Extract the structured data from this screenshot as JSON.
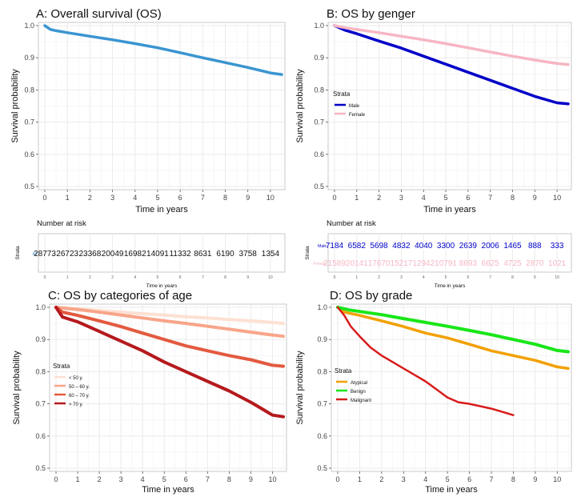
{
  "colors": {
    "os_all": "#3a95d1",
    "male": "#0000c8",
    "female": "#f6b6c3",
    "age_lt50": "#fde1d3",
    "age_50_60": "#f8a58a",
    "age_60_70": "#e35a3f",
    "age_gt70": "#b5191d",
    "atypical": "#f2a004",
    "benign": "#19e619",
    "malignant": "#d81b1b",
    "grid": "#ebebeb",
    "axis": "#333333"
  },
  "chart_data": [
    {
      "id": "A",
      "type": "line",
      "title": "A: Overall survival (OS)",
      "xlabel": "Time in years",
      "ylabel": "Survival probability",
      "xlim": [
        0,
        10.5
      ],
      "ylim": [
        0.5,
        1.0
      ],
      "xticks": [
        "0",
        "1",
        "2",
        "3",
        "4",
        "5",
        "6",
        "7",
        "8",
        "9",
        "10"
      ],
      "yticks": [
        "0.5",
        "0.6",
        "0.7",
        "0.8",
        "0.9",
        "1.0"
      ],
      "legend": null,
      "series": [
        {
          "name": "All",
          "color": "#3a95d1",
          "width": 3.5,
          "x": [
            0,
            0.25,
            0.5,
            1,
            2,
            3,
            4,
            5,
            6,
            7,
            8,
            9,
            10,
            10.5
          ],
          "y": [
            1.0,
            0.988,
            0.984,
            0.978,
            0.967,
            0.956,
            0.944,
            0.931,
            0.916,
            0.9,
            0.885,
            0.87,
            0.853,
            0.848
          ]
        }
      ],
      "risk_table": {
        "title": "Number at risk",
        "ylabel": "Strata",
        "xlabel": "Time in years",
        "rows": [
          {
            "name": "All",
            "color": "#3a95d1",
            "values": [
              "28773",
              "26723",
              "23368",
              "20049",
              "16982",
              "14091",
              "11332",
              "8631",
              "6190",
              "3758",
              "1354"
            ]
          }
        ]
      }
    },
    {
      "id": "B",
      "type": "line",
      "title": "B: OS by genger",
      "xlabel": "Time in years",
      "ylabel": "Survival probability",
      "xlim": [
        0,
        10.5
      ],
      "ylim": [
        0.5,
        1.0
      ],
      "xticks": [
        "0",
        "1",
        "2",
        "3",
        "4",
        "5",
        "6",
        "7",
        "8",
        "9",
        "10"
      ],
      "yticks": [
        "0.5",
        "0.6",
        "0.7",
        "0.8",
        "0.9",
        "1.0"
      ],
      "legend": {
        "title": "Strata",
        "position": "center-left"
      },
      "series": [
        {
          "name": "Male",
          "color": "#0000c8",
          "width": 3.5,
          "x": [
            0,
            0.5,
            1,
            2,
            3,
            4,
            5,
            6,
            7,
            8,
            9,
            10,
            10.5
          ],
          "y": [
            1.0,
            0.985,
            0.975,
            0.952,
            0.93,
            0.905,
            0.88,
            0.855,
            0.83,
            0.805,
            0.78,
            0.76,
            0.757
          ]
        },
        {
          "name": "Female",
          "color": "#f6b6c3",
          "width": 3.5,
          "x": [
            0,
            0.5,
            1,
            2,
            3,
            4,
            5,
            6,
            7,
            8,
            9,
            10,
            10.5
          ],
          "y": [
            1.0,
            0.993,
            0.988,
            0.978,
            0.967,
            0.956,
            0.944,
            0.931,
            0.918,
            0.905,
            0.893,
            0.882,
            0.879
          ]
        }
      ],
      "risk_table": {
        "title": "Number at risk",
        "ylabel": "Strata",
        "xlabel": "Time in years",
        "rows": [
          {
            "name": "Male",
            "color": "#0000c8",
            "values": [
              "7184",
              "6582",
              "5698",
              "4832",
              "4040",
              "3300",
              "2639",
              "2006",
              "1465",
              "888",
              "333"
            ]
          },
          {
            "name": "Female",
            "color": "#f6b6c3",
            "values": [
              "21589",
              "20141",
              "17670",
              "15217",
              "12942",
              "10791",
              "8693",
              "6625",
              "4725",
              "2870",
              "1021"
            ]
          }
        ]
      }
    },
    {
      "id": "C",
      "type": "line",
      "title": "C: OS by categories of age",
      "xlabel": "Time in years",
      "ylabel": "Survival probability",
      "xlim": [
        0,
        10.5
      ],
      "ylim": [
        0.5,
        1.0
      ],
      "xticks": [
        "0",
        "1",
        "2",
        "3",
        "4",
        "5",
        "6",
        "7",
        "8",
        "9",
        "10"
      ],
      "yticks": [
        "0.5",
        "0.6",
        "0.7",
        "0.8",
        "0.9",
        "1.0"
      ],
      "legend": {
        "title": "Strata",
        "position": "center-left"
      },
      "series": [
        {
          "name": "< 50 y.",
          "color": "#fde1d3",
          "width": 4,
          "x": [
            0,
            1,
            2,
            3,
            4,
            5,
            6,
            7,
            8,
            9,
            10,
            10.5
          ],
          "y": [
            1.0,
            0.995,
            0.99,
            0.985,
            0.98,
            0.976,
            0.971,
            0.967,
            0.962,
            0.958,
            0.953,
            0.95
          ]
        },
        {
          "name": "50 – 60 y.",
          "color": "#f8a58a",
          "width": 4,
          "x": [
            0,
            1,
            2,
            3,
            4,
            5,
            6,
            7,
            8,
            9,
            10,
            10.5
          ],
          "y": [
            1.0,
            0.993,
            0.985,
            0.976,
            0.967,
            0.958,
            0.95,
            0.941,
            0.932,
            0.923,
            0.914,
            0.91
          ]
        },
        {
          "name": "60 – 70 y.",
          "color": "#e35a3f",
          "width": 4,
          "x": [
            0,
            0.3,
            1,
            2,
            3,
            4,
            5,
            6,
            7,
            8,
            9,
            10,
            10.5
          ],
          "y": [
            1.0,
            0.985,
            0.975,
            0.958,
            0.94,
            0.92,
            0.9,
            0.88,
            0.865,
            0.85,
            0.837,
            0.82,
            0.817
          ]
        },
        {
          "name": "> 70 y.",
          "color": "#b5191d",
          "width": 4,
          "x": [
            0,
            0.3,
            1,
            2,
            3,
            4,
            5,
            6,
            7,
            8,
            9,
            9.5,
            10,
            10.5
          ],
          "y": [
            1.0,
            0.97,
            0.955,
            0.925,
            0.895,
            0.865,
            0.83,
            0.8,
            0.77,
            0.74,
            0.705,
            0.685,
            0.665,
            0.66
          ]
        }
      ]
    },
    {
      "id": "D",
      "type": "line",
      "title": "D: OS by grade",
      "xlabel": "Time in years",
      "ylabel": "Survival probability",
      "xlim": [
        0,
        10.5
      ],
      "ylim": [
        0.5,
        1.0
      ],
      "xticks": [
        "0",
        "1",
        "2",
        "3",
        "4",
        "5",
        "6",
        "7",
        "8",
        "9",
        "10"
      ],
      "yticks": [
        "0.5",
        "0.6",
        "0.7",
        "0.8",
        "0.9",
        "1.0"
      ],
      "legend": {
        "title": "Strata",
        "position": "center-left"
      },
      "series": [
        {
          "name": "Atypical",
          "color": "#f2a004",
          "width": 3.5,
          "x": [
            0,
            0.3,
            1,
            2,
            3,
            4,
            5,
            6,
            7,
            8,
            9,
            10,
            10.5
          ],
          "y": [
            1.0,
            0.985,
            0.975,
            0.958,
            0.94,
            0.92,
            0.905,
            0.885,
            0.865,
            0.85,
            0.835,
            0.815,
            0.81
          ]
        },
        {
          "name": "Benign",
          "color": "#19e619",
          "width": 4,
          "x": [
            0,
            0.5,
            1,
            2,
            3,
            4,
            5,
            6,
            7,
            8,
            9,
            10,
            10.5
          ],
          "y": [
            1.0,
            0.992,
            0.987,
            0.977,
            0.965,
            0.953,
            0.941,
            0.928,
            0.915,
            0.9,
            0.885,
            0.866,
            0.862
          ]
        },
        {
          "name": "Malignant",
          "color": "#d81b1b",
          "width": 2.5,
          "x": [
            0,
            0.3,
            0.6,
            1,
            1.5,
            2,
            2.5,
            3,
            3.5,
            4,
            4.5,
            5,
            5.5,
            6,
            7,
            8
          ],
          "y": [
            1.0,
            0.975,
            0.94,
            0.91,
            0.875,
            0.85,
            0.83,
            0.81,
            0.79,
            0.77,
            0.745,
            0.72,
            0.705,
            0.7,
            0.685,
            0.665
          ]
        }
      ]
    }
  ]
}
